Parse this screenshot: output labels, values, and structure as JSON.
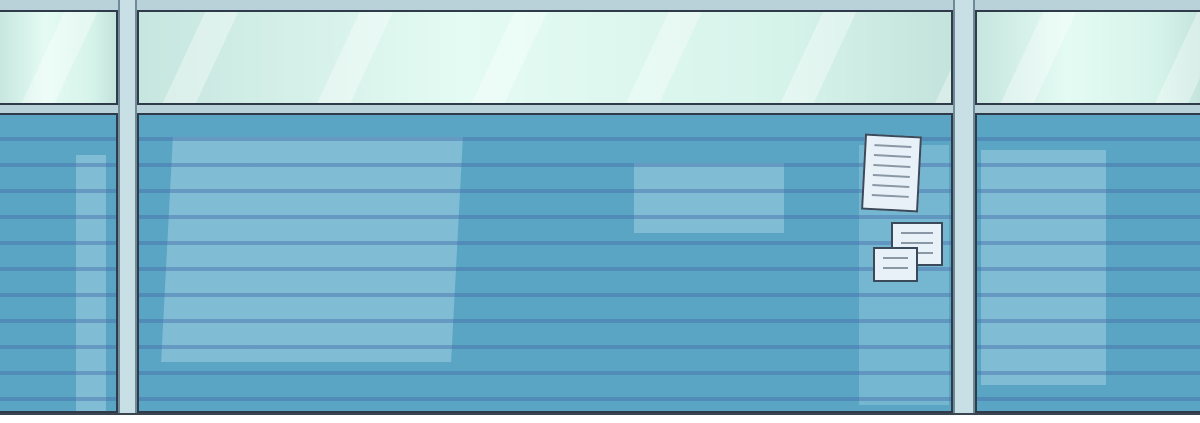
{
  "colors": {
    "glass": "#5aa5c4",
    "frame": "#b9d2da",
    "transom": "#e4fbf3",
    "outline": "#2f3b4a"
  }
}
